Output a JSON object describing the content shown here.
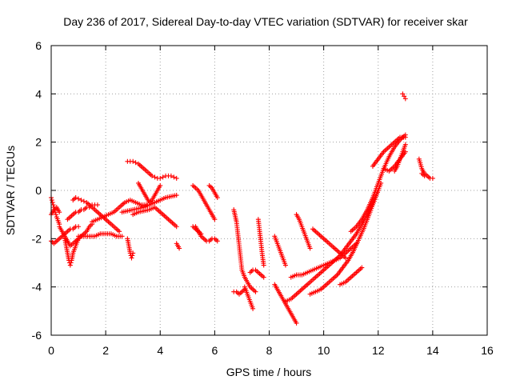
{
  "chart_data": {
    "type": "scatter",
    "title": "Day 236 of 2017, Sidereal Day-to-day VTEC variation (SDTVAR) for receiver skar",
    "xlabel": "GPS time / hours",
    "ylabel": "SDTVAR / TECUs",
    "xlim": [
      0,
      16
    ],
    "ylim": [
      -6,
      6
    ],
    "xticks": [
      "0",
      "2",
      "4",
      "6",
      "8",
      "10",
      "12",
      "14",
      "16"
    ],
    "yticks": [
      "-6",
      "-4",
      "-2",
      "0",
      "2",
      "4",
      "6"
    ],
    "grid": true,
    "marker": "+",
    "color": "#ff0000",
    "tracks": [
      {
        "x": [
          0.0,
          0.05,
          0.1,
          0.15,
          0.2,
          0.3
        ],
        "y": [
          -0.3,
          -0.5,
          -0.7,
          -0.9,
          -1.1,
          -1.4
        ]
      },
      {
        "x": [
          0.0,
          0.1,
          0.2,
          0.3
        ],
        "y": [
          -1.0,
          -0.8,
          -0.7,
          -0.9
        ]
      },
      {
        "x": [
          0.0,
          0.1,
          0.2,
          0.3,
          0.4,
          0.5,
          0.6,
          0.7,
          0.8,
          0.9,
          1.0
        ],
        "y": [
          -2.1,
          -2.2,
          -2.1,
          -2.0,
          -1.9,
          -1.8,
          -1.7,
          -1.6,
          -1.6,
          -1.5,
          -1.5
        ]
      },
      {
        "x": [
          0.3,
          0.4,
          0.5,
          0.6,
          0.7,
          0.8,
          0.9,
          1.0,
          1.1,
          1.2,
          1.3,
          1.4,
          1.5
        ],
        "y": [
          -1.5,
          -1.7,
          -1.9,
          -2.1,
          -2.3,
          -2.2,
          -2.1,
          -2.0,
          -1.9,
          -1.8,
          -1.7,
          -1.5,
          -1.4
        ]
      },
      {
        "x": [
          0.5,
          0.55,
          0.6,
          0.65,
          0.7,
          0.75,
          0.8,
          0.9,
          1.0
        ],
        "y": [
          -2.0,
          -2.3,
          -2.6,
          -2.9,
          -3.1,
          -2.9,
          -2.6,
          -2.3,
          -2.0
        ]
      },
      {
        "x": [
          0.6,
          0.7,
          0.8,
          0.9,
          1.0,
          1.1,
          1.2,
          1.3,
          1.4,
          1.5,
          1.6,
          1.7
        ],
        "y": [
          -1.2,
          -1.1,
          -1.0,
          -0.9,
          -0.9,
          -0.8,
          -0.8,
          -0.7,
          -0.7,
          -0.6,
          -0.6,
          -0.6
        ]
      },
      {
        "x": [
          0.8,
          0.9,
          1.0,
          1.1,
          1.2,
          1.3,
          1.4,
          1.5,
          1.6,
          1.7,
          1.8,
          1.9,
          2.0,
          2.1,
          2.2,
          2.3,
          2.4,
          2.5
        ],
        "y": [
          -0.4,
          -0.3,
          -0.35,
          -0.4,
          -0.45,
          -0.5,
          -0.6,
          -0.7,
          -0.8,
          -0.9,
          -1.0,
          -1.1,
          -1.2,
          -1.3,
          -1.4,
          -1.5,
          -1.6,
          -1.7
        ]
      },
      {
        "x": [
          1.0,
          1.2,
          1.4,
          1.6,
          1.8,
          2.0,
          2.2,
          2.4,
          2.6
        ],
        "y": [
          -1.9,
          -1.9,
          -1.9,
          -1.9,
          -1.8,
          -1.8,
          -1.8,
          -1.9,
          -1.9
        ]
      },
      {
        "x": [
          1.5,
          1.7,
          1.9,
          2.1,
          2.3,
          2.5,
          2.7,
          2.9,
          3.1,
          3.3,
          3.5
        ],
        "y": [
          -1.3,
          -1.2,
          -1.1,
          -1.0,
          -0.9,
          -0.7,
          -0.5,
          -0.4,
          -0.5,
          -0.6,
          -0.6
        ]
      },
      {
        "x": [
          2.8,
          2.9,
          3.0,
          3.1,
          3.2,
          3.3,
          3.4,
          3.5,
          3.6,
          3.7,
          3.8,
          3.9,
          4.0,
          4.1,
          4.2,
          4.3,
          4.4,
          4.5,
          4.6
        ],
        "y": [
          1.2,
          1.2,
          1.2,
          1.15,
          1.1,
          1.0,
          0.9,
          0.8,
          0.7,
          0.6,
          0.55,
          0.5,
          0.5,
          0.55,
          0.6,
          0.6,
          0.6,
          0.55,
          0.5
        ]
      },
      {
        "x": [
          2.6,
          2.8,
          3.0,
          3.2,
          3.4,
          3.6,
          3.8,
          4.0,
          4.2,
          4.4,
          4.6
        ],
        "y": [
          -0.9,
          -0.85,
          -0.8,
          -0.75,
          -0.7,
          -0.6,
          -0.5,
          -0.4,
          -0.3,
          -0.25,
          -0.2
        ]
      },
      {
        "x": [
          3.0,
          3.2,
          3.4,
          3.6,
          3.8,
          4.0,
          4.2,
          4.4,
          4.6
        ],
        "y": [
          -1.0,
          -0.9,
          -0.85,
          -0.8,
          -0.7,
          -0.9,
          -1.1,
          -1.3,
          -1.5
        ]
      },
      {
        "x": [
          3.2,
          3.3,
          3.4,
          3.5,
          3.6,
          3.7,
          3.8,
          3.9,
          4.0
        ],
        "y": [
          0.3,
          0.1,
          -0.1,
          -0.3,
          -0.5,
          -0.4,
          -0.2,
          0.0,
          0.2
        ]
      },
      {
        "x": [
          2.8,
          2.85,
          2.9,
          2.95,
          3.0
        ],
        "y": [
          -2.0,
          -2.3,
          -2.6,
          -2.8,
          -2.6
        ]
      },
      {
        "x": [
          4.6,
          4.7
        ],
        "y": [
          -2.2,
          -2.4
        ]
      },
      {
        "x": [
          5.2,
          5.3,
          5.4,
          5.5,
          5.6,
          5.7,
          5.8,
          5.9,
          6.0
        ],
        "y": [
          0.2,
          0.1,
          0.0,
          -0.2,
          -0.4,
          -0.6,
          -0.8,
          -1.0,
          -1.2
        ]
      },
      {
        "x": [
          5.3,
          5.4,
          5.5,
          5.6,
          5.7,
          5.8,
          5.9,
          6.0,
          6.1
        ],
        "y": [
          -1.5,
          -1.7,
          -1.9,
          -2.0,
          -2.1,
          -2.1,
          -2.0,
          -2.0,
          -2.1
        ]
      },
      {
        "x": [
          5.8,
          5.9,
          6.0,
          6.1
        ],
        "y": [
          0.2,
          0.1,
          -0.1,
          -0.3
        ]
      },
      {
        "x": [
          5.2,
          5.3,
          5.4,
          5.5
        ],
        "y": [
          -1.5,
          -1.6,
          -1.7,
          -1.8
        ]
      },
      {
        "x": [
          6.7,
          6.8,
          6.85,
          6.9,
          6.95,
          7.0,
          7.1,
          7.2,
          7.3,
          7.4,
          7.5
        ],
        "y": [
          -0.8,
          -1.3,
          -1.8,
          -2.3,
          -2.8,
          -3.3,
          -3.6,
          -3.8,
          -4.0,
          -4.1,
          -4.2
        ]
      },
      {
        "x": [
          6.7,
          6.8,
          6.9,
          7.0,
          7.1
        ],
        "y": [
          -4.2,
          -4.2,
          -4.3,
          -4.2,
          -4.1
        ]
      },
      {
        "x": [
          7.3,
          7.4,
          7.5,
          7.6,
          7.7,
          7.8
        ],
        "y": [
          -3.4,
          -3.3,
          -3.3,
          -3.4,
          -3.5,
          -3.6
        ]
      },
      {
        "x": [
          7.1,
          7.2,
          7.3,
          7.4
        ],
        "y": [
          -4.0,
          -4.3,
          -4.6,
          -4.9
        ]
      },
      {
        "x": [
          7.6,
          7.65,
          7.7,
          7.75,
          7.8
        ],
        "y": [
          -1.2,
          -1.7,
          -2.2,
          -2.7,
          -3.1
        ]
      },
      {
        "x": [
          8.2,
          8.3,
          8.4,
          8.5,
          8.6
        ],
        "y": [
          -1.9,
          -2.2,
          -2.5,
          -2.8,
          -3.1
        ]
      },
      {
        "x": [
          8.2,
          8.3,
          8.4,
          8.5,
          8.6,
          8.7,
          8.8,
          8.9,
          9.0
        ],
        "y": [
          -3.9,
          -4.1,
          -4.3,
          -4.5,
          -4.7,
          -4.9,
          -5.1,
          -5.3,
          -5.5
        ]
      },
      {
        "x": [
          8.6,
          8.8,
          9.0,
          9.2,
          9.4,
          9.6,
          9.8,
          10.0,
          10.2,
          10.4,
          10.6,
          10.8,
          11.0,
          11.2,
          11.4,
          11.6,
          11.8,
          12.0
        ],
        "y": [
          -4.6,
          -4.5,
          -4.3,
          -4.1,
          -3.9,
          -3.7,
          -3.5,
          -3.3,
          -3.1,
          -2.9,
          -2.7,
          -2.4,
          -2.1,
          -1.8,
          -1.4,
          -1.0,
          -0.5,
          0.0
        ]
      },
      {
        "x": [
          8.8,
          9.0,
          9.2,
          9.4,
          9.6,
          9.8,
          10.0,
          10.2,
          10.4,
          10.6,
          10.8,
          11.0,
          11.2
        ],
        "y": [
          -3.6,
          -3.5,
          -3.5,
          -3.4,
          -3.3,
          -3.2,
          -3.1,
          -3.0,
          -2.9,
          -2.8,
          -2.6,
          -2.4,
          -2.2
        ]
      },
      {
        "x": [
          9.5,
          9.7,
          9.9,
          10.1,
          10.3,
          10.5,
          10.7,
          10.9,
          11.1,
          11.3,
          11.5,
          11.7,
          11.9,
          12.1
        ],
        "y": [
          -4.3,
          -4.2,
          -4.1,
          -3.9,
          -3.7,
          -3.5,
          -3.2,
          -2.9,
          -2.5,
          -2.0,
          -1.5,
          -0.9,
          -0.3,
          0.3
        ]
      },
      {
        "x": [
          9.6,
          9.8,
          10.0,
          10.2,
          10.4,
          10.6,
          10.8
        ],
        "y": [
          -1.6,
          -1.8,
          -2.0,
          -2.2,
          -2.4,
          -2.6,
          -2.8
        ]
      },
      {
        "x": [
          9.0,
          9.1,
          9.2,
          9.3,
          9.4,
          9.5
        ],
        "y": [
          -1.0,
          -1.2,
          -1.5,
          -1.8,
          -2.1,
          -2.4
        ]
      },
      {
        "x": [
          10.6,
          10.8,
          11.0,
          11.2,
          11.4
        ],
        "y": [
          -3.9,
          -3.8,
          -3.6,
          -3.4,
          -3.2
        ]
      },
      {
        "x": [
          11.0,
          11.2,
          11.4,
          11.6,
          11.8,
          12.0,
          12.2,
          12.4,
          12.6,
          12.8,
          13.0
        ],
        "y": [
          -1.7,
          -1.5,
          -1.2,
          -0.8,
          -0.3,
          0.3,
          0.9,
          1.4,
          1.8,
          2.1,
          2.3
        ]
      },
      {
        "x": [
          11.8,
          12.0,
          12.2,
          12.4,
          12.6,
          12.8,
          13.0
        ],
        "y": [
          1.0,
          1.3,
          1.6,
          1.8,
          2.0,
          2.2,
          2.2
        ]
      },
      {
        "x": [
          12.2,
          12.4,
          12.6,
          12.8,
          13.0
        ],
        "y": [
          0.9,
          0.8,
          1.0,
          1.3,
          1.6
        ]
      },
      {
        "x": [
          12.6,
          12.7,
          12.8,
          12.9,
          13.0
        ],
        "y": [
          0.8,
          1.0,
          1.3,
          1.6,
          1.9
        ]
      },
      {
        "x": [
          12.9,
          12.95,
          13.0
        ],
        "y": [
          4.0,
          3.9,
          3.8
        ]
      },
      {
        "x": [
          13.5,
          13.6,
          13.7,
          13.8,
          13.9,
          14.0
        ],
        "y": [
          1.3,
          0.9,
          0.7,
          0.6,
          0.5,
          0.5
        ]
      },
      {
        "x": [
          13.6,
          13.7
        ],
        "y": [
          0.7,
          0.6
        ]
      }
    ]
  }
}
